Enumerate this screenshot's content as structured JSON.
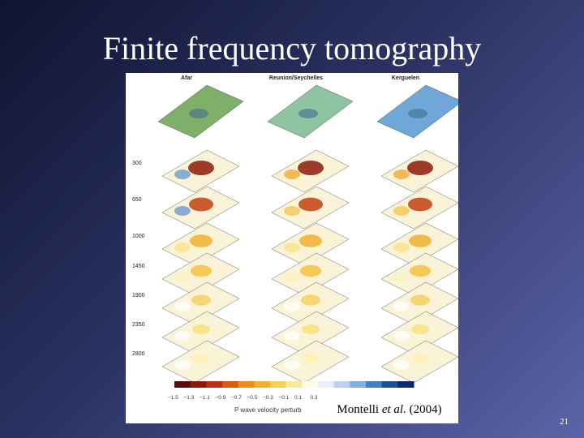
{
  "slide": {
    "title": "Finite frequency tomography",
    "slide_number": "21"
  },
  "figure": {
    "columns": [
      "Afar",
      "Reunion/Seychelles",
      "Kerguelen"
    ],
    "depths": [
      "300",
      "650",
      "1000",
      "1450",
      "1900",
      "2350",
      "2800"
    ],
    "colorbar_ticks": [
      "−1.5",
      "−1.3",
      "−1.1",
      "−0.9",
      "−0.7",
      "−0.5",
      "−0.3",
      "−0.1",
      "0.1",
      "0.3"
    ],
    "colorbar_label": "P wave velocity perturb"
  },
  "citation": {
    "authors": "Montelli",
    "etal": "et al.",
    "year": "(2004)"
  }
}
